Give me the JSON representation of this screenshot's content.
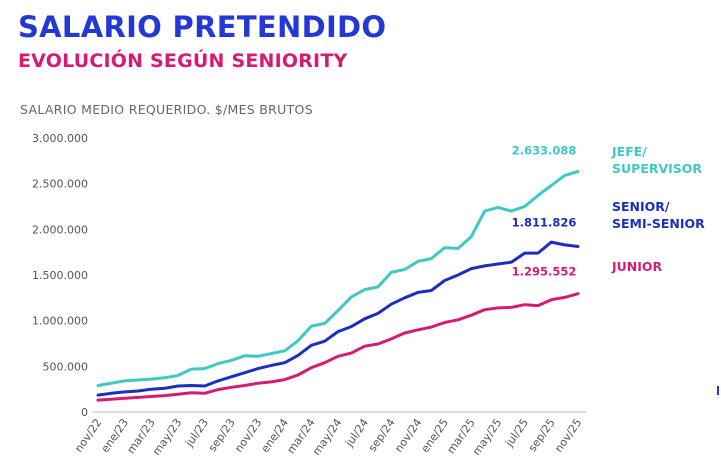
{
  "header": {
    "title": "SALARIO PRETENDIDO",
    "subtitle": "EVOLUCIÓN SEGÚN SENIORITY"
  },
  "chart_data": {
    "type": "line",
    "title": "SALARIO PRETENDIDO",
    "subtitle": "EVOLUCIÓN SEGÚN SENIORITY",
    "ylabel": "SALARIO MEDIO REQUERIDO. $/MES BRUTOS",
    "ylim": [
      0,
      3000000
    ],
    "yticks": [
      0,
      500000,
      1000000,
      1500000,
      2000000,
      2500000,
      3000000
    ],
    "ytick_labels": [
      "0",
      "500.000",
      "1.000.000",
      "1.500.000",
      "2.000.000",
      "2.500.000",
      "3.000.000"
    ],
    "x": [
      "nov/22",
      "dic/22",
      "ene/23",
      "feb/23",
      "mar/23",
      "abr/23",
      "may/23",
      "jun/23",
      "jul/23",
      "ago/23",
      "sep/23",
      "oct/23",
      "nov/23",
      "dic/23",
      "ene/24",
      "feb/24",
      "mar/24",
      "abr/24",
      "may/24",
      "jun/24",
      "jul/24",
      "ago/24",
      "sep/24",
      "oct/24",
      "nov/24",
      "dic/24",
      "ene/25",
      "feb/25",
      "mar/25",
      "abr/25",
      "may/25",
      "jun/25",
      "jul/25",
      "ago/25",
      "sep/25",
      "oct/25",
      "nov/25"
    ],
    "xtick_labels": [
      "nov/22",
      "ene/23",
      "mar/23",
      "may/23",
      "jul/23",
      "sep/23",
      "nov/23",
      "ene/24",
      "mar/24",
      "may/24",
      "jul/24",
      "sep/24",
      "nov/24",
      "ene/25",
      "mar/25",
      "may/25",
      "jul/25",
      "sep/25",
      "nov/25"
    ],
    "grid": false,
    "series": [
      {
        "name": "JEFE/ SUPERVISOR",
        "label_lines": [
          "JEFE/",
          "SUPERVISOR"
        ],
        "color": "#3ec9c4",
        "end_label": "2.633.088",
        "values": [
          290000,
          315000,
          340000,
          350000,
          360000,
          375000,
          400000,
          470000,
          475000,
          530000,
          565000,
          615000,
          610000,
          640000,
          670000,
          780000,
          940000,
          970000,
          1110000,
          1260000,
          1340000,
          1370000,
          1530000,
          1560000,
          1650000,
          1680000,
          1800000,
          1790000,
          1920000,
          2200000,
          2240000,
          2200000,
          2250000,
          2370000,
          2480000,
          2590000,
          2633088
        ]
      },
      {
        "name": "SENIOR/ SEMI-SENIOR",
        "label_lines": [
          "SENIOR/",
          "SEMI-SENIOR"
        ],
        "color": "#1b2ec0",
        "end_label": "1.811.826",
        "values": [
          185000,
          205000,
          220000,
          230000,
          250000,
          260000,
          285000,
          290000,
          285000,
          340000,
          385000,
          430000,
          475000,
          510000,
          540000,
          620000,
          730000,
          775000,
          880000,
          935000,
          1020000,
          1080000,
          1180000,
          1250000,
          1310000,
          1330000,
          1440000,
          1500000,
          1570000,
          1600000,
          1620000,
          1640000,
          1740000,
          1740000,
          1860000,
          1830000,
          1811826
        ]
      },
      {
        "name": "JUNIOR",
        "label_lines": [
          "JUNIOR"
        ],
        "color": "#d81b72",
        "end_label": "1.295.552",
        "values": [
          130000,
          140000,
          150000,
          160000,
          170000,
          180000,
          195000,
          210000,
          205000,
          245000,
          270000,
          290000,
          315000,
          330000,
          355000,
          405000,
          485000,
          540000,
          610000,
          645000,
          720000,
          745000,
          800000,
          865000,
          900000,
          930000,
          980000,
          1010000,
          1060000,
          1120000,
          1140000,
          1145000,
          1175000,
          1165000,
          1230000,
          1255000,
          1295552
        ]
      }
    ]
  }
}
